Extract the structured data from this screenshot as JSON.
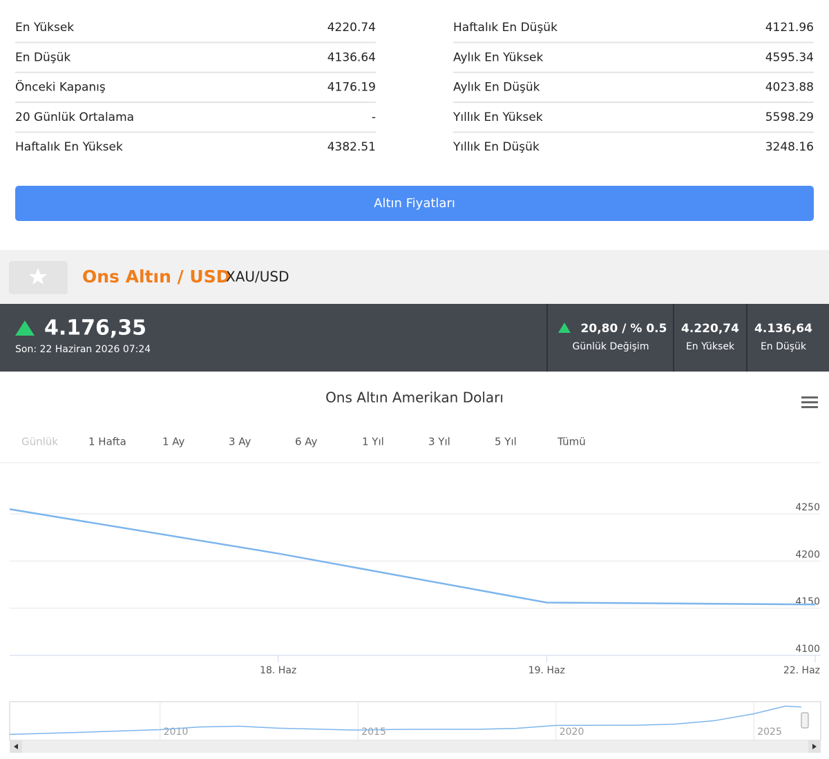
{
  "stats": {
    "left": [
      [
        "En Yüksek",
        "4220.74"
      ],
      [
        "En Düşük",
        "4136.64"
      ],
      [
        "Önceki Kapanış",
        "4176.19"
      ],
      [
        "20 Günlük Ortalama",
        "-"
      ],
      [
        "Haftalık En Yüksek",
        "4382.51"
      ]
    ],
    "right": [
      [
        "Haftalık En Düşük",
        "4121.96"
      ],
      [
        "Aylık En Yüksek",
        "4595.34"
      ],
      [
        "Aylık En Düşük",
        "4023.88"
      ],
      [
        "Yıllık En Yüksek",
        "5598.29"
      ],
      [
        "Yıllık En Düşük",
        "3248.16"
      ]
    ]
  },
  "button": "Altın Fiyatları",
  "header": {
    "title": "Ons Altın / USD",
    "symbol": "XAU/USD"
  },
  "quote": {
    "price": "4.176,35",
    "last": "Son: 22 Haziran 2026 07:24",
    "cells": [
      {
        "value": "20,80 / % 0.5",
        "label": "Günlük Değişim"
      },
      {
        "value": "4.220,74",
        "label": "En Yüksek"
      },
      {
        "value": "4.136,64",
        "label": "En Düşük"
      }
    ]
  },
  "ranges": [
    "Günlük",
    "1 Hafta",
    "1 Ay",
    "3 Ay",
    "6 Ay",
    "1 Yıl",
    "3 Yıl",
    "5 Yıl",
    "Tümü"
  ],
  "chart_data": {
    "type": "line",
    "title": "Ons Altın Amerikan Doları",
    "categories": [
      null,
      "18. Haz",
      "19. Haz",
      "22. Haz"
    ],
    "values": [
      4255,
      4208,
      4156,
      4154
    ],
    "color": "#7cb5ec",
    "ylim": [
      4100,
      4302
    ],
    "yticks": [
      4100,
      4150,
      4200,
      4250
    ],
    "grid": true
  },
  "navigator": {
    "x": [
      2006.2,
      2008,
      2010,
      2011,
      2012,
      2013,
      2015,
      2016,
      2018,
      2019,
      2020,
      2022,
      2023,
      2024,
      2025,
      2025.8,
      2026.2
    ],
    "values": [
      600,
      870,
      1225,
      1570,
      1670,
      1410,
      1160,
      1250,
      1270,
      1390,
      1770,
      1800,
      1940,
      2390,
      3300,
      4300,
      4176
    ],
    "xlim": [
      2006.2,
      2026.2
    ],
    "ylim": [
      0,
      4700
    ],
    "xticks": [
      2010,
      2015,
      2020,
      2025
    ],
    "color": "#7cb5ec"
  }
}
